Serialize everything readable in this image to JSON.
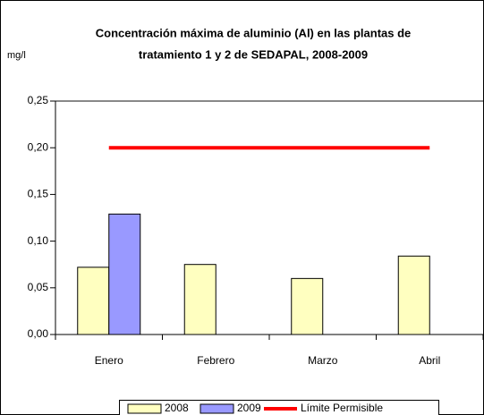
{
  "chart_data": {
    "type": "bar",
    "title": [
      "Concentración máxima de aluminio (Al) en las plantas de",
      "tratamiento 1  y  2 de SEDAPAL, 2008-2009"
    ],
    "y_label": "mg/l",
    "categories": [
      "Enero",
      "Febrero",
      "Marzo",
      "Abril"
    ],
    "series": [
      {
        "name": "2008",
        "color": "#ffffc0",
        "values": [
          0.072,
          0.075,
          0.06,
          0.084
        ]
      },
      {
        "name": "2009",
        "color": "#9999ff",
        "values": [
          0.129,
          null,
          null,
          null
        ]
      },
      {
        "name": "Límite Permisible",
        "type": "line",
        "color": "#ff0000",
        "values": [
          0.2,
          0.2,
          0.2,
          0.2
        ]
      }
    ],
    "ylim": [
      0,
      0.25
    ],
    "yticks": [
      {
        "value": 0,
        "label": "0,00"
      },
      {
        "value": 0.05,
        "label": "0,05"
      },
      {
        "value": 0.1,
        "label": "0,10"
      },
      {
        "value": 0.15,
        "label": "0,15"
      },
      {
        "value": 0.2,
        "label": "0,20"
      },
      {
        "value": 0.25,
        "label": "0,25"
      }
    ],
    "legend": "bottom"
  }
}
